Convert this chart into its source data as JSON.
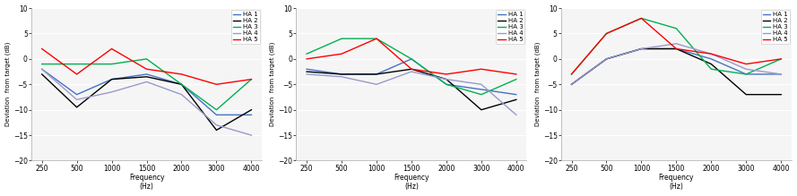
{
  "freqs": [
    250,
    500,
    1000,
    1500,
    2000,
    3000,
    4000
  ],
  "chart1": {
    "HA1": [
      -2,
      -7,
      -4,
      -3,
      -5,
      -11,
      -11
    ],
    "HA2": [
      -3,
      -9.5,
      -4,
      -3.5,
      -5,
      -14,
      -10
    ],
    "HA3": [
      -1,
      -1,
      -1,
      0,
      -5,
      -10,
      -4
    ],
    "HA4": [
      -2,
      -8,
      -6.5,
      -4.5,
      -7,
      -13,
      -15
    ],
    "HA5": [
      2,
      -3,
      2,
      -2,
      -3,
      -5,
      -4
    ]
  },
  "chart2": {
    "HA1": [
      -2,
      -3,
      -3,
      0,
      -5,
      -6,
      -7
    ],
    "HA2": [
      -2.5,
      -3,
      -3,
      -2,
      -4,
      -10,
      -8
    ],
    "HA3": [
      1,
      4,
      4,
      0,
      -5,
      -7,
      -4
    ],
    "HA4": [
      -3,
      -3.5,
      -5,
      -2.5,
      -4,
      -5,
      -11
    ],
    "HA5": [
      0,
      1,
      4,
      -2,
      -3,
      -2,
      -3
    ]
  },
  "chart3": {
    "HA1": [
      -5,
      0,
      2,
      2,
      0,
      -3,
      -3
    ],
    "HA2": [
      -5,
      0,
      2,
      2,
      -1,
      -7,
      -7
    ],
    "HA3": [
      -3,
      5,
      8,
      6,
      -2,
      -3,
      0
    ],
    "HA4": [
      -5,
      0,
      2,
      3,
      1,
      -2,
      -3
    ],
    "HA5": [
      -3,
      5,
      8,
      2,
      1,
      -1,
      0
    ]
  },
  "colors": {
    "HA1": "#4472c4",
    "HA2": "#000000",
    "HA3": "#00b050",
    "HA4": "#9999cc",
    "HA5": "#ff0000"
  },
  "ylim": [
    -20,
    10
  ],
  "yticks": [
    -20,
    -15,
    -10,
    -5,
    0,
    5,
    10
  ],
  "ylabel": "Deviation  from target (dB)",
  "xlabel_line1": "Frequency",
  "xlabel_line2": "(Hz)",
  "xtick_labels": [
    "250",
    "500",
    "1000",
    "1500",
    "2000",
    "3000",
    "4000"
  ],
  "legend_labels": [
    "HA 1",
    "HA 2",
    "HA 3",
    "HA 4",
    "HA 5"
  ],
  "bg_color": "#f5f5f5",
  "grid_color": "#ffffff",
  "spine_color": "#aaaaaa"
}
